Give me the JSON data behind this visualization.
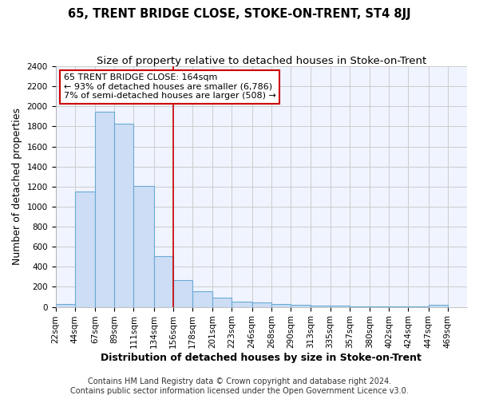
{
  "title": "65, TRENT BRIDGE CLOSE, STOKE-ON-TRENT, ST4 8JJ",
  "subtitle": "Size of property relative to detached houses in Stoke-on-Trent",
  "xlabel": "Distribution of detached houses by size in Stoke-on-Trent",
  "ylabel": "Number of detached properties",
  "footer_line1": "Contains HM Land Registry data © Crown copyright and database right 2024.",
  "footer_line2": "Contains public sector information licensed under the Open Government Licence v3.0.",
  "annotation_line1": "65 TRENT BRIDGE CLOSE: 164sqm",
  "annotation_line2": "← 93% of detached houses are smaller (6,786)",
  "annotation_line3": "7% of semi-detached houses are larger (508) →",
  "bar_left_edges": [
    22,
    44,
    67,
    89,
    111,
    134,
    156,
    178,
    201,
    223,
    246,
    268,
    290,
    313,
    335,
    357,
    380,
    402,
    424,
    447
  ],
  "bar_widths": [
    22,
    23,
    22,
    22,
    23,
    22,
    22,
    23,
    22,
    23,
    22,
    22,
    23,
    22,
    22,
    23,
    22,
    22,
    23,
    22
  ],
  "bar_heights": [
    25,
    1150,
    1950,
    1830,
    1210,
    510,
    270,
    155,
    90,
    50,
    45,
    25,
    20,
    15,
    10,
    5,
    5,
    5,
    5,
    20
  ],
  "bar_color": "#ccddf5",
  "bar_edge_color": "#6aaad4",
  "vline_x": 156,
  "vline_color": "#cc0000",
  "grid_color": "#cccccc",
  "background_color": "#ffffff",
  "plot_background_color": "#f0f4ff",
  "ylim": [
    0,
    2400
  ],
  "yticks": [
    0,
    200,
    400,
    600,
    800,
    1000,
    1200,
    1400,
    1600,
    1800,
    2000,
    2200,
    2400
  ],
  "tick_labels": [
    "22sqm",
    "44sqm",
    "67sqm",
    "89sqm",
    "111sqm",
    "134sqm",
    "156sqm",
    "178sqm",
    "201sqm",
    "223sqm",
    "246sqm",
    "268sqm",
    "290sqm",
    "313sqm",
    "335sqm",
    "357sqm",
    "380sqm",
    "402sqm",
    "424sqm",
    "447sqm",
    "469sqm"
  ],
  "annotation_box_facecolor": "#ffffff",
  "annotation_box_edgecolor": "#cc0000",
  "title_fontsize": 10.5,
  "subtitle_fontsize": 9.5,
  "axis_label_fontsize": 9,
  "tick_fontsize": 7.5,
  "annotation_fontsize": 8,
  "footer_fontsize": 7
}
